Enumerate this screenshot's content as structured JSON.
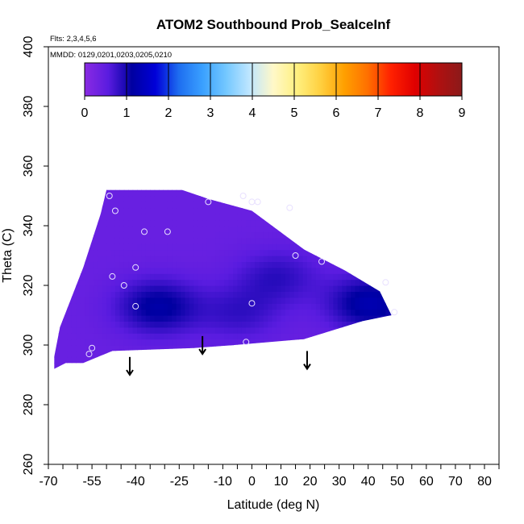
{
  "chart_data": {
    "type": "heatmap",
    "title": "ATOM2 Southbound Prob_SeaIceInf",
    "annotations": [
      "Flts: 2,3,4,5,6",
      "MMDD: 0129,0201,0203,0205,0210"
    ],
    "xlabel": "Latitude (deg N)",
    "ylabel": "Theta (C)",
    "xlim": [
      -70,
      85
    ],
    "ylim": [
      260,
      400
    ],
    "x_ticks": [
      -70,
      -55,
      -40,
      -25,
      -10,
      0,
      10,
      20,
      30,
      40,
      50,
      60,
      70,
      80
    ],
    "x_tick_labels": [
      "-70",
      "-55",
      "-40",
      "-25",
      "-10",
      "0",
      "10",
      "20",
      "30",
      "40",
      "50",
      "60",
      "70",
      "80"
    ],
    "x_minor_ticks": [
      -65,
      -60,
      -50,
      -45,
      -35,
      -30,
      -20,
      -15,
      -5,
      5,
      15,
      25,
      35,
      45,
      55,
      65,
      75,
      85
    ],
    "y_ticks": [
      260,
      280,
      300,
      320,
      340,
      360,
      380,
      400
    ],
    "y_tick_labels": [
      "260",
      "280",
      "300",
      "320",
      "340",
      "360",
      "380",
      "400"
    ],
    "colorbar": {
      "range": [
        0,
        9
      ],
      "ticks": [
        0,
        1,
        2,
        3,
        4,
        5,
        6,
        7,
        8,
        9
      ],
      "tick_labels": [
        "0",
        "1",
        "2",
        "3",
        "4",
        "5",
        "6",
        "7",
        "8",
        "9"
      ],
      "colors": [
        "#8a2be2",
        "#5a1ce0",
        "#0000a0",
        "#0000d8",
        "#1e6ef0",
        "#3aa0ff",
        "#74c8ff",
        "#bfe6ff",
        "#fff8c8",
        "#fff080",
        "#ffd040",
        "#ffa000",
        "#ff7000",
        "#ff2000",
        "#e00000",
        "#b01010",
        "#8b1a1a"
      ]
    },
    "field": {
      "outline": [
        [
          -68,
          292
        ],
        [
          -64,
          294
        ],
        [
          -58,
          294
        ],
        [
          -48,
          298
        ],
        [
          -20,
          299
        ],
        [
          -6,
          300
        ],
        [
          18,
          302
        ],
        [
          38,
          308
        ],
        [
          48,
          310
        ],
        [
          44,
          318
        ],
        [
          32,
          325
        ],
        [
          18,
          332
        ],
        [
          0,
          345
        ],
        [
          -15,
          349
        ],
        [
          -24,
          352
        ],
        [
          -50,
          352
        ],
        [
          -52,
          344
        ],
        [
          -58,
          326
        ],
        [
          -66,
          306
        ],
        [
          -68,
          296
        ]
      ],
      "base_value": 0.4,
      "hotspots": [
        {
          "lat": -33,
          "theta": 312,
          "value": 1.2
        },
        {
          "lat": 40,
          "theta": 313,
          "value": 1.3
        },
        {
          "lat": 8,
          "theta": 322,
          "value": 0.85
        },
        {
          "lat": -5,
          "theta": 310,
          "value": 0.8
        }
      ]
    },
    "points": [
      {
        "lat": -49,
        "theta": 350
      },
      {
        "lat": -3,
        "theta": 350
      },
      {
        "lat": -15,
        "theta": 348
      },
      {
        "lat": 2,
        "theta": 348
      },
      {
        "lat": 0,
        "theta": 348
      },
      {
        "lat": 13,
        "theta": 346
      },
      {
        "lat": -47,
        "theta": 345
      },
      {
        "lat": -37,
        "theta": 338
      },
      {
        "lat": -29,
        "theta": 338
      },
      {
        "lat": 15,
        "theta": 330
      },
      {
        "lat": 24,
        "theta": 328
      },
      {
        "lat": -40,
        "theta": 326
      },
      {
        "lat": -48,
        "theta": 323
      },
      {
        "lat": -44,
        "theta": 320
      },
      {
        "lat": 46,
        "theta": 321
      },
      {
        "lat": -40,
        "theta": 313
      },
      {
        "lat": 0,
        "theta": 314
      },
      {
        "lat": 49,
        "theta": 311
      },
      {
        "lat": -2,
        "theta": 301
      },
      {
        "lat": -55,
        "theta": 299
      },
      {
        "lat": -56,
        "theta": 297
      }
    ],
    "arrows": [
      {
        "lat": -42,
        "theta_top": 296,
        "theta_bottom": 290
      },
      {
        "lat": -17,
        "theta_top": 303,
        "theta_bottom": 297
      },
      {
        "lat": 19,
        "theta_top": 298,
        "theta_bottom": 292
      }
    ],
    "grid": false,
    "legend": "none"
  }
}
